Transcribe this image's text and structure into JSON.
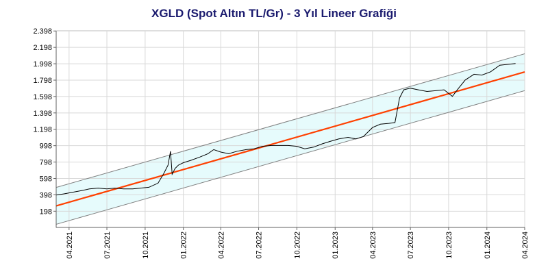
{
  "chart_data": {
    "type": "line",
    "title": "XGLD (Spot Altın TL/Gr) - 3 Yıl Lineer Grafiği",
    "xlabel": "",
    "ylabel": "",
    "x_ticks": [
      "04.2021",
      "07.2021",
      "10.2021",
      "01.2022",
      "04.2022",
      "07.2022",
      "10.2022",
      "01.2023",
      "04.2023",
      "07.2023",
      "10.2023",
      "01.2024",
      "04.2024"
    ],
    "y_ticks": [
      "2.398",
      "2.198",
      "1.998",
      "1.798",
      "1.598",
      "1.398",
      "1.198",
      "998",
      "798",
      "598",
      "398",
      "198"
    ],
    "y_tick_values": [
      2398,
      2198,
      1998,
      1798,
      1598,
      1398,
      1198,
      998,
      798,
      598,
      398,
      198
    ],
    "xlim": [
      "2021-03-01",
      "2024-04-01"
    ],
    "ylim": [
      0,
      2400
    ],
    "grid": true,
    "colors": {
      "price": "#000000",
      "trend": "#ff4000",
      "channel_line": "#808080",
      "channel_fill": "#e6fbfc"
    },
    "trend_line": {
      "start": {
        "x": "2021-03-01",
        "y": 263
      },
      "end": {
        "x": "2024-04-01",
        "y": 1898
      }
    },
    "channel_upper": {
      "start": {
        "x": "2021-03-01",
        "y": 488
      },
      "end": {
        "x": "2024-04-01",
        "y": 2120
      }
    },
    "channel_lower": {
      "start": {
        "x": "2021-03-01",
        "y": 38
      },
      "end": {
        "x": "2024-04-01",
        "y": 1670
      }
    },
    "series": [
      {
        "x": [
          "2021-03-01",
          "2021-03-20",
          "2021-04-10",
          "2021-05-01",
          "2021-05-20",
          "2021-06-10",
          "2021-07-01",
          "2021-07-20",
          "2021-08-10",
          "2021-09-01",
          "2021-09-20",
          "2021-10-10",
          "2021-11-01",
          "2021-11-15",
          "2021-11-25",
          "2021-12-01",
          "2021-12-05",
          "2021-12-12",
          "2021-12-20",
          "2022-01-01",
          "2022-01-20",
          "2022-02-10",
          "2022-03-01",
          "2022-03-15",
          "2022-04-01",
          "2022-04-20",
          "2022-05-10",
          "2022-06-01",
          "2022-06-20",
          "2022-07-10",
          "2022-08-01",
          "2022-08-20",
          "2022-09-10",
          "2022-10-01",
          "2022-10-20",
          "2022-11-10",
          "2022-12-01",
          "2022-12-20",
          "2023-01-10",
          "2023-02-01",
          "2023-02-20",
          "2023-03-10",
          "2023-04-01",
          "2023-04-20",
          "2023-05-10",
          "2023-05-25",
          "2023-06-05",
          "2023-06-15",
          "2023-07-01",
          "2023-07-20",
          "2023-08-10",
          "2023-09-01",
          "2023-09-20",
          "2023-10-10",
          "2023-10-25",
          "2023-11-10",
          "2023-12-01",
          "2023-12-20",
          "2024-01-10",
          "2024-02-01",
          "2024-02-20",
          "2024-03-10"
        ],
        "y": [
          395,
          410,
          430,
          450,
          470,
          480,
          470,
          480,
          470,
          470,
          480,
          490,
          540,
          660,
          760,
          930,
          650,
          720,
          760,
          790,
          820,
          860,
          900,
          950,
          920,
          900,
          930,
          950,
          960,
          990,
          1000,
          1000,
          1000,
          990,
          960,
          980,
          1020,
          1050,
          1080,
          1100,
          1080,
          1110,
          1220,
          1260,
          1270,
          1280,
          1580,
          1680,
          1700,
          1680,
          1660,
          1670,
          1680,
          1600,
          1700,
          1800,
          1870,
          1860,
          1900,
          1980,
          1990,
          2000
        ]
      }
    ]
  }
}
